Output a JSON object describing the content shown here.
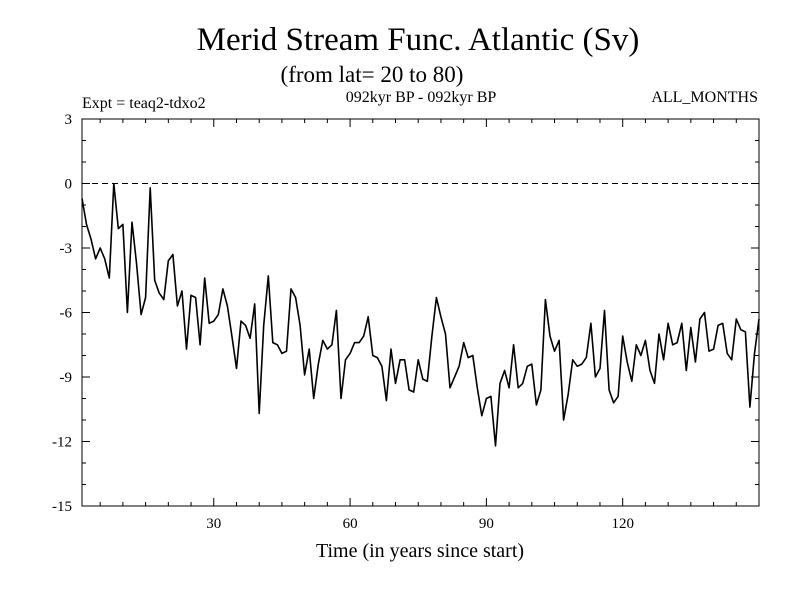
{
  "chart_data": {
    "type": "line",
    "title": "Merid Stream Func. Atlantic (Sv)",
    "subtitle": "(from lat= 20 to 80)",
    "expt_label": "Expt = teaq2-tdxo2",
    "period_label": "092kyr BP - 092kyr BP",
    "months_label": "ALL_MONTHS",
    "xlabel": "Time (in years since start)",
    "ylabel": "",
    "xlim": [
      1,
      150
    ],
    "ylim": [
      -15,
      3
    ],
    "xticks": [
      30,
      60,
      90,
      120
    ],
    "xtick_labels": [
      "30",
      "60",
      "90",
      "120"
    ],
    "yticks": [
      3,
      0,
      -3,
      -6,
      -9,
      -12,
      -15
    ],
    "ytick_labels": [
      "3",
      "0",
      "-3",
      "-6",
      "-9",
      "-12",
      "-15"
    ],
    "reference_line": 0,
    "series": [
      {
        "name": "Merid Stream Func.",
        "x": [
          1,
          2,
          3,
          4,
          5,
          6,
          7,
          8,
          9,
          10,
          11,
          12,
          13,
          14,
          15,
          16,
          17,
          18,
          19,
          20,
          21,
          22,
          23,
          24,
          25,
          26,
          27,
          28,
          29,
          30,
          31,
          32,
          33,
          34,
          35,
          36,
          37,
          38,
          39,
          40,
          41,
          42,
          43,
          44,
          45,
          46,
          47,
          48,
          49,
          50,
          51,
          52,
          53,
          54,
          55,
          56,
          57,
          58,
          59,
          60,
          61,
          62,
          63,
          64,
          65,
          66,
          67,
          68,
          69,
          70,
          71,
          72,
          73,
          74,
          75,
          76,
          77,
          78,
          79,
          80,
          81,
          82,
          83,
          84,
          85,
          86,
          87,
          88,
          89,
          90,
          91,
          92,
          93,
          94,
          95,
          96,
          97,
          98,
          99,
          100,
          101,
          102,
          103,
          104,
          105,
          106,
          107,
          108,
          109,
          110,
          111,
          112,
          113,
          114,
          115,
          116,
          117,
          118,
          119,
          120,
          121,
          122,
          123,
          124,
          125,
          126,
          127,
          128,
          129,
          130,
          131,
          132,
          133,
          134,
          135,
          136,
          137,
          138,
          139,
          140,
          141,
          142,
          143,
          144,
          145,
          146,
          147,
          148,
          149,
          150
        ],
        "values": [
          -0.7,
          -1.9,
          -2.6,
          -3.5,
          -3.0,
          -3.5,
          -4.4,
          0.0,
          -2.1,
          -1.9,
          -6.0,
          -1.8,
          -3.7,
          -6.1,
          -5.3,
          -0.2,
          -4.5,
          -5.1,
          -5.4,
          -3.6,
          -3.3,
          -5.7,
          -5.0,
          -7.7,
          -5.2,
          -5.3,
          -7.5,
          -4.4,
          -6.5,
          -6.4,
          -6.1,
          -4.9,
          -5.7,
          -7.1,
          -8.6,
          -6.4,
          -6.6,
          -7.2,
          -5.6,
          -10.7,
          -6.6,
          -4.3,
          -7.4,
          -7.5,
          -7.9,
          -7.8,
          -4.9,
          -5.3,
          -6.6,
          -8.9,
          -7.7,
          -10.0,
          -8.4,
          -7.3,
          -7.7,
          -7.5,
          -5.9,
          -10.0,
          -8.2,
          -7.9,
          -7.4,
          -7.4,
          -7.1,
          -6.2,
          -8.0,
          -8.1,
          -8.5,
          -10.1,
          -7.7,
          -9.3,
          -8.2,
          -8.2,
          -9.6,
          -9.7,
          -8.2,
          -9.1,
          -9.2,
          -7.1,
          -5.3,
          -6.2,
          -7.0,
          -9.5,
          -9.0,
          -8.5,
          -7.4,
          -8.1,
          -8.0,
          -9.5,
          -10.8,
          -10.0,
          -9.9,
          -12.2,
          -9.3,
          -8.7,
          -9.5,
          -7.5,
          -9.5,
          -9.3,
          -8.5,
          -8.4,
          -10.3,
          -9.6,
          -5.4,
          -7.1,
          -7.8,
          -7.3,
          -11.0,
          -9.8,
          -8.2,
          -8.5,
          -8.4,
          -8.1,
          -6.5,
          -9.0,
          -8.6,
          -5.9,
          -9.6,
          -10.2,
          -9.9,
          -7.1,
          -8.3,
          -9.2,
          -7.5,
          -8.0,
          -7.3,
          -8.7,
          -9.3,
          -7.0,
          -8.2,
          -6.5,
          -7.5,
          -7.4,
          -6.5,
          -8.7,
          -6.7,
          -8.3,
          -6.3,
          -6.0,
          -7.8,
          -7.7,
          -6.6,
          -6.5,
          -7.9,
          -8.2,
          -6.3,
          -6.8,
          -6.9,
          -10.4,
          -7.9,
          -6.3
        ]
      }
    ]
  }
}
